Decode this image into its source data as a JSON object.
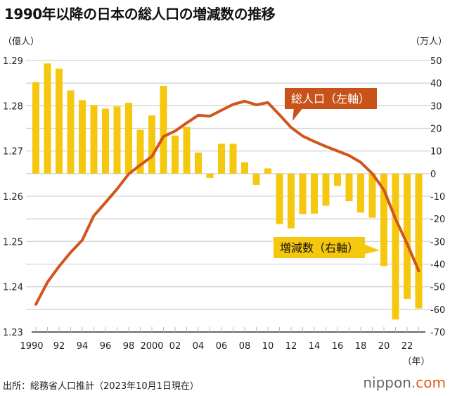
{
  "title": "1990年以降の日本の総人口の増減数の推移",
  "footer": "出所：総務省人口推計（2023年10月1日現在）",
  "logo": {
    "text": "nippon",
    "suffix": ".com"
  },
  "colors": {
    "bar": "#F5C80F",
    "line": "#D0561B",
    "line_label_bg": "#C8531A",
    "bar_label_bg": "#F5C80F",
    "grid": "#d4d4d4"
  },
  "chart_data": {
    "type": "bar+line",
    "title": "1990年以降の日本の総人口の増減数の推移",
    "xlabel": "（年）",
    "ylabel_left": "（億人）",
    "ylabel_right": "（万人）",
    "ylim_left": [
      1.23,
      1.29
    ],
    "ylim_right": [
      -70,
      50
    ],
    "left_ticks": [
      "1.29",
      "1.28",
      "1.27",
      "1.26",
      "1.25",
      "1.24",
      "1.23"
    ],
    "right_ticks": [
      "50",
      "40",
      "30",
      "20",
      "10",
      "0",
      "-10",
      "-20",
      "-30",
      "-40",
      "-50",
      "-60",
      "-70"
    ],
    "x_tick_labels": [
      "1990",
      "92",
      "94",
      "96",
      "98",
      "2000",
      "02",
      "04",
      "06",
      "08",
      "10",
      "12",
      "14",
      "16",
      "18",
      "20",
      "22"
    ],
    "grid": true,
    "x": [
      1990,
      1991,
      1992,
      1993,
      1994,
      1995,
      1996,
      1997,
      1998,
      1999,
      2000,
      2001,
      2002,
      2003,
      2004,
      2005,
      2006,
      2007,
      2008,
      2009,
      2010,
      2011,
      2012,
      2013,
      2014,
      2015,
      2016,
      2017,
      2018,
      2019,
      2020,
      2021,
      2022,
      2023
    ],
    "series": [
      {
        "name": "増減数（右軸）",
        "type": "bar",
        "axis": "right",
        "values": [
          40.4,
          48.7,
          46.4,
          36.8,
          32.5,
          30.3,
          28.7,
          29.7,
          31.3,
          19.4,
          25.7,
          38.8,
          16.8,
          20.7,
          9.3,
          -1.9,
          13.2,
          13.2,
          5.0,
          -5.0,
          2.3,
          -22.3,
          -24.2,
          -17.9,
          -17.7,
          -14.2,
          -5.4,
          -12.2,
          -17.2,
          -19.5,
          -40.8,
          -64.5,
          -55.4,
          -59.6
        ]
      },
      {
        "name": "総人口（左軸）",
        "type": "line",
        "axis": "left",
        "values": [
          1.2361,
          1.241,
          1.2445,
          1.2476,
          1.2503,
          1.2557,
          1.2586,
          1.2616,
          1.2649,
          1.2669,
          1.2688,
          1.2732,
          1.2744,
          1.2762,
          1.2779,
          1.2777,
          1.279,
          1.2803,
          1.281,
          1.2802,
          1.2807,
          1.278,
          1.2752,
          1.2733,
          1.2721,
          1.271,
          1.27,
          1.269,
          1.2675,
          1.265,
          1.2614,
          1.255,
          1.2495,
          1.2435
        ]
      }
    ]
  }
}
